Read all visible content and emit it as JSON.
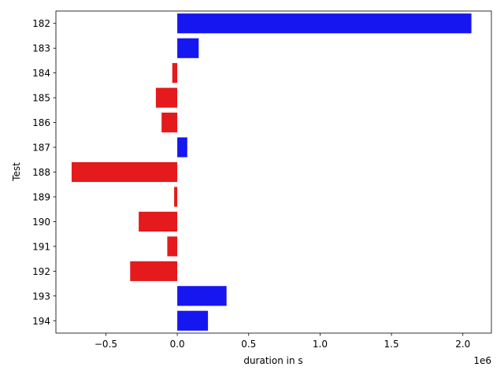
{
  "chart_data": {
    "type": "bar",
    "orientation": "horizontal",
    "title": "",
    "xlabel": "duration in s",
    "ylabel": "Test",
    "x_offset_label": "1e6",
    "xlim": [
      -850000,
      2200000
    ],
    "x_ticks": [
      -500000,
      0,
      500000,
      1000000,
      1500000,
      2000000
    ],
    "x_tick_labels": [
      "−0.5",
      "0.0",
      "0.5",
      "1.0",
      "1.5",
      "2.0"
    ],
    "categories": [
      "182",
      "183",
      "184",
      "185",
      "186",
      "187",
      "188",
      "189",
      "190",
      "191",
      "192",
      "193",
      "194"
    ],
    "values": [
      2060000,
      150000,
      -35000,
      -150000,
      -110000,
      70000,
      -740000,
      -22000,
      -270000,
      -70000,
      -330000,
      345000,
      215000
    ],
    "positive_color": "#1616f0",
    "negative_color": "#e41a1c",
    "grid": false,
    "legend": "none"
  }
}
